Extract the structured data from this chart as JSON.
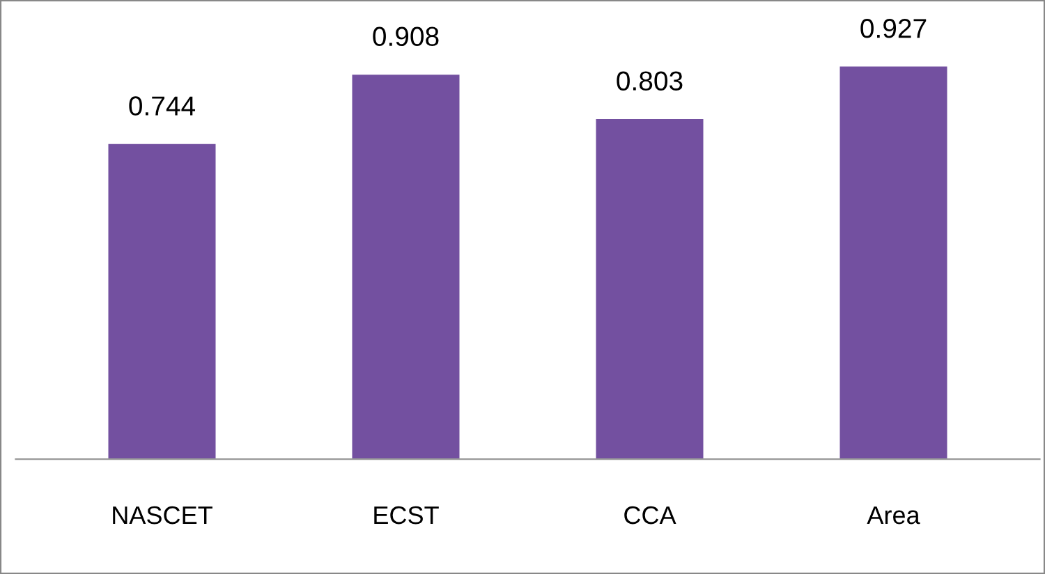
{
  "chart_data": {
    "type": "bar",
    "categories": [
      "NASCET",
      "ECST",
      "CCA",
      "Area"
    ],
    "values": [
      0.744,
      0.908,
      0.803,
      0.927
    ],
    "color": "#7350a0",
    "data_labels": true,
    "grid": false,
    "legend": false
  }
}
